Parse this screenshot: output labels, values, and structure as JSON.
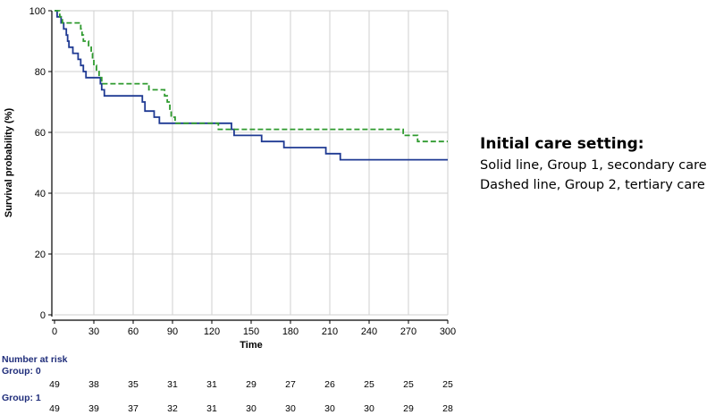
{
  "chart_data": {
    "type": "line",
    "subtype": "kaplan-meier",
    "xlabel": "Time",
    "ylabel": "Survival probability (%)",
    "xlim": [
      0,
      300
    ],
    "ylim": [
      0,
      100
    ],
    "x_ticks": [
      0,
      30,
      60,
      90,
      120,
      150,
      180,
      210,
      240,
      270,
      300
    ],
    "y_ticks": [
      0,
      20,
      40,
      60,
      80,
      100
    ],
    "grid": true,
    "series": [
      {
        "name": "Group 1 (solid, secondary care)",
        "style": "solid",
        "color": "#1f3a93",
        "steps": [
          [
            0,
            100
          ],
          [
            2,
            98
          ],
          [
            5,
            96
          ],
          [
            7,
            94
          ],
          [
            9,
            92
          ],
          [
            10,
            90
          ],
          [
            11,
            88
          ],
          [
            14,
            86
          ],
          [
            18,
            84
          ],
          [
            20,
            82
          ],
          [
            22,
            80
          ],
          [
            24,
            78
          ],
          [
            35,
            76
          ],
          [
            36,
            74
          ],
          [
            38,
            72
          ],
          [
            67,
            70
          ],
          [
            69,
            67
          ],
          [
            76,
            65
          ],
          [
            80,
            63
          ],
          [
            135,
            61
          ],
          [
            137,
            59
          ],
          [
            158,
            57
          ],
          [
            175,
            55
          ],
          [
            207,
            53
          ],
          [
            218,
            51
          ],
          [
            300,
            51
          ]
        ]
      },
      {
        "name": "Group 2 (dashed, tertiary care)",
        "style": "dashed",
        "color": "#2e9a2e",
        "steps": [
          [
            0,
            100
          ],
          [
            4,
            98
          ],
          [
            6,
            96
          ],
          [
            20,
            94
          ],
          [
            21,
            92
          ],
          [
            22,
            90
          ],
          [
            26,
            88
          ],
          [
            28,
            86
          ],
          [
            29,
            84
          ],
          [
            30,
            82
          ],
          [
            32,
            80
          ],
          [
            34,
            78
          ],
          [
            36,
            76
          ],
          [
            72,
            74
          ],
          [
            84,
            72
          ],
          [
            86,
            70
          ],
          [
            88,
            67
          ],
          [
            89,
            65
          ],
          [
            92,
            63
          ],
          [
            125,
            61
          ],
          [
            266,
            59
          ],
          [
            277,
            57
          ],
          [
            300,
            57
          ]
        ]
      }
    ],
    "number_at_risk": {
      "title": "Number at risk",
      "groups": [
        {
          "label": "Group: 0",
          "values": [
            49,
            38,
            35,
            31,
            31,
            29,
            27,
            26,
            25,
            25,
            25
          ]
        },
        {
          "label": "Group: 1",
          "values": [
            49,
            39,
            37,
            32,
            31,
            30,
            30,
            30,
            30,
            29,
            28
          ]
        }
      ]
    }
  },
  "legend": {
    "title": "Initial care setting:",
    "line1": "Solid line, Group 1, secondary care",
    "line2": "Dashed line, Group 2, tertiary care"
  }
}
